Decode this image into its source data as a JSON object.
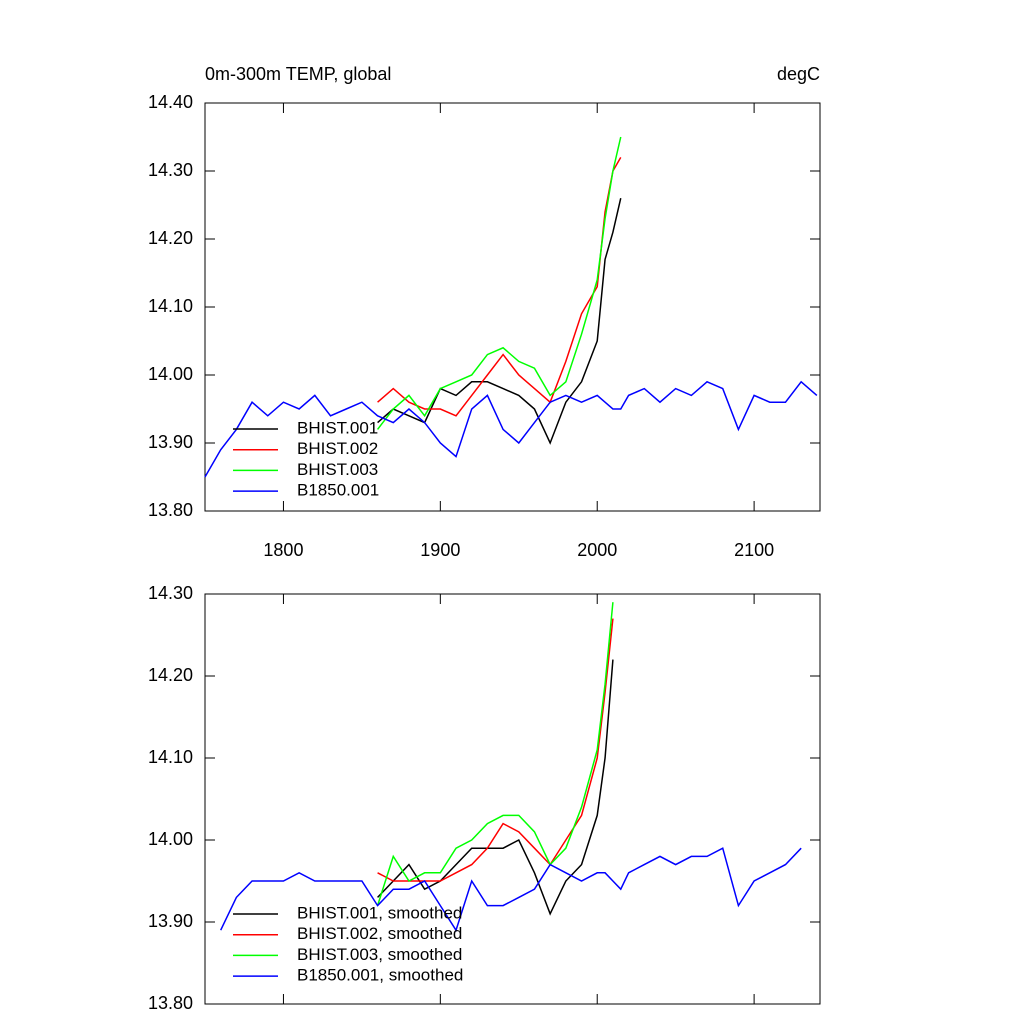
{
  "chart_data": [
    {
      "type": "line",
      "title": "0m-300m TEMP, global",
      "units": "degC",
      "x": [
        1750,
        1760,
        1770,
        1780,
        1790,
        1800,
        1810,
        1820,
        1830,
        1840,
        1850,
        1860,
        1870,
        1880,
        1890,
        1900,
        1910,
        1920,
        1930,
        1940,
        1950,
        1960,
        1970,
        1980,
        1990,
        2000,
        2005,
        2010,
        2015,
        2020,
        2030,
        2040,
        2050,
        2060,
        2070,
        2080,
        2090,
        2100,
        2110,
        2120,
        2130,
        2140
      ],
      "series": [
        {
          "name": "BHIST.001",
          "color": "#000000",
          "values": [
            null,
            null,
            null,
            null,
            null,
            null,
            null,
            null,
            null,
            null,
            null,
            13.93,
            13.95,
            13.94,
            13.93,
            13.98,
            13.97,
            13.99,
            13.99,
            13.98,
            13.97,
            13.95,
            13.9,
            13.96,
            13.99,
            14.05,
            14.17,
            14.21,
            14.26,
            null,
            null,
            null,
            null,
            null,
            null,
            null,
            null,
            null,
            null,
            null,
            null,
            null
          ]
        },
        {
          "name": "BHIST.002",
          "color": "#ff0000",
          "values": [
            null,
            null,
            null,
            null,
            null,
            null,
            null,
            null,
            null,
            null,
            null,
            13.96,
            13.98,
            13.96,
            13.95,
            13.95,
            13.94,
            13.97,
            14.0,
            14.03,
            14.0,
            13.98,
            13.96,
            14.02,
            14.09,
            14.13,
            14.24,
            14.3,
            14.32,
            null,
            null,
            null,
            null,
            null,
            null,
            null,
            null,
            null,
            null,
            null,
            null,
            null
          ]
        },
        {
          "name": "BHIST.003",
          "color": "#00ff00",
          "values": [
            null,
            null,
            null,
            null,
            null,
            null,
            null,
            null,
            null,
            null,
            null,
            13.92,
            13.95,
            13.97,
            13.94,
            13.98,
            13.99,
            14.0,
            14.03,
            14.04,
            14.02,
            14.01,
            13.97,
            13.99,
            14.06,
            14.14,
            14.23,
            14.3,
            14.35,
            null,
            null,
            null,
            null,
            null,
            null,
            null,
            null,
            null,
            null,
            null,
            null,
            null
          ]
        },
        {
          "name": "B1850.001",
          "color": "#0000ff",
          "values": [
            13.85,
            13.89,
            13.92,
            13.96,
            13.94,
            13.96,
            13.95,
            13.97,
            13.94,
            13.95,
            13.96,
            13.94,
            13.93,
            13.95,
            13.93,
            13.9,
            13.88,
            13.95,
            13.97,
            13.92,
            13.9,
            13.93,
            13.96,
            13.97,
            13.96,
            13.97,
            13.96,
            13.95,
            13.95,
            13.97,
            13.98,
            13.96,
            13.98,
            13.97,
            13.99,
            13.98,
            13.92,
            13.97,
            13.96,
            13.96,
            13.99,
            13.97
          ]
        }
      ],
      "xlim": [
        1750,
        2142
      ],
      "xticks": [
        1800,
        1900,
        2000,
        2100
      ],
      "ylim": [
        13.8,
        14.4
      ],
      "yticks": [
        {
          "value": 13.8,
          "label": "13.80"
        },
        {
          "value": 13.9,
          "label": "13.90"
        },
        {
          "value": 14.0,
          "label": "14.00"
        },
        {
          "value": 14.1,
          "label": "14.10"
        },
        {
          "value": 14.2,
          "label": "14.20"
        },
        {
          "value": 14.3,
          "label": "14.30"
        },
        {
          "value": 14.4,
          "label": "14.40"
        }
      ],
      "legend": "lower left",
      "xtick_labels": true
    },
    {
      "type": "line",
      "x": [
        1750,
        1760,
        1770,
        1780,
        1790,
        1800,
        1810,
        1820,
        1830,
        1840,
        1850,
        1860,
        1870,
        1880,
        1890,
        1900,
        1910,
        1920,
        1930,
        1940,
        1950,
        1960,
        1970,
        1980,
        1990,
        2000,
        2005,
        2010,
        2015,
        2020,
        2030,
        2040,
        2050,
        2060,
        2070,
        2080,
        2090,
        2100,
        2110,
        2120,
        2130,
        2140
      ],
      "series": [
        {
          "name": "BHIST.001, smoothed",
          "color": "#000000",
          "values": [
            null,
            null,
            null,
            null,
            null,
            null,
            null,
            null,
            null,
            null,
            null,
            13.93,
            13.95,
            13.97,
            13.94,
            13.95,
            13.97,
            13.99,
            13.99,
            13.99,
            14.0,
            13.96,
            13.91,
            13.95,
            13.97,
            14.03,
            14.1,
            14.22,
            null,
            null,
            null,
            null,
            null,
            null,
            null,
            null,
            null,
            null,
            null,
            null,
            null,
            null
          ]
        },
        {
          "name": "BHIST.002, smoothed",
          "color": "#ff0000",
          "values": [
            null,
            null,
            null,
            null,
            null,
            null,
            null,
            null,
            null,
            null,
            null,
            13.96,
            13.95,
            13.95,
            13.95,
            13.95,
            13.96,
            13.97,
            13.99,
            14.02,
            14.01,
            13.99,
            13.97,
            14.0,
            14.03,
            14.1,
            14.18,
            14.27,
            null,
            null,
            null,
            null,
            null,
            null,
            null,
            null,
            null,
            null,
            null,
            null,
            null,
            null
          ]
        },
        {
          "name": "BHIST.003, smoothed",
          "color": "#00ff00",
          "values": [
            null,
            null,
            null,
            null,
            null,
            null,
            null,
            null,
            null,
            null,
            null,
            13.92,
            13.98,
            13.95,
            13.96,
            13.96,
            13.99,
            14.0,
            14.02,
            14.03,
            14.03,
            14.01,
            13.97,
            13.99,
            14.04,
            14.11,
            14.19,
            14.29,
            null,
            null,
            null,
            null,
            null,
            null,
            null,
            null,
            null,
            null,
            null,
            null,
            null,
            null
          ]
        },
        {
          "name": "B1850.001, smoothed",
          "color": "#0000ff",
          "values": [
            null,
            13.89,
            13.93,
            13.95,
            13.95,
            13.95,
            13.96,
            13.95,
            13.95,
            13.95,
            13.95,
            13.92,
            13.94,
            13.94,
            13.95,
            13.92,
            13.89,
            13.95,
            13.92,
            13.92,
            13.93,
            13.94,
            13.97,
            13.96,
            13.95,
            13.96,
            13.96,
            13.95,
            13.94,
            13.96,
            13.97,
            13.98,
            13.97,
            13.98,
            13.98,
            13.99,
            13.92,
            13.95,
            13.96,
            13.97,
            13.99,
            null
          ]
        }
      ],
      "xlim": [
        1750,
        2142
      ],
      "xticks": [
        1800,
        1900,
        2000,
        2100
      ],
      "ylim": [
        13.8,
        14.3
      ],
      "yticks": [
        {
          "value": 13.8,
          "label": "13.80"
        },
        {
          "value": 13.9,
          "label": "13.90"
        },
        {
          "value": 14.0,
          "label": "14.00"
        },
        {
          "value": 14.1,
          "label": "14.10"
        },
        {
          "value": 14.2,
          "label": "14.20"
        },
        {
          "value": 14.3,
          "label": "14.30"
        }
      ],
      "legend": "lower left",
      "xtick_labels": false
    }
  ]
}
